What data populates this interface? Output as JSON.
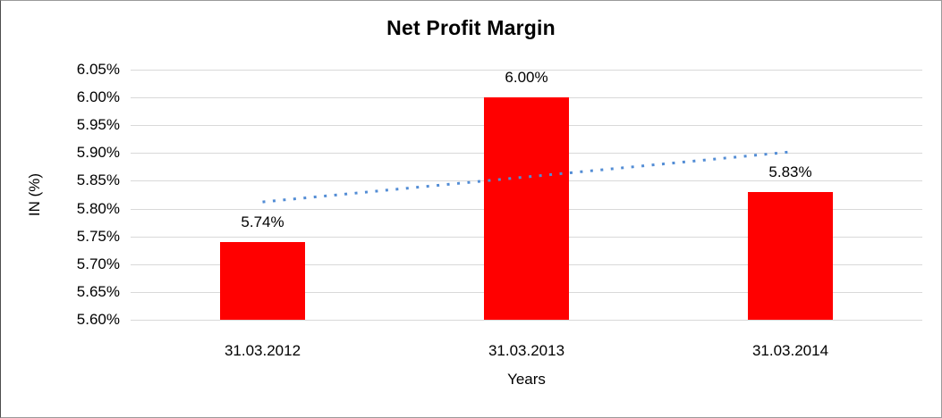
{
  "chart_data": {
    "type": "bar",
    "title": "Net Profit Margin",
    "xlabel": "Years",
    "ylabel": "IN (%)",
    "categories": [
      "31.03.2012",
      "31.03.2013",
      "31.03.2014"
    ],
    "values": [
      5.74,
      6.0,
      5.83
    ],
    "data_labels": [
      "5.74%",
      "6.00%",
      "5.83%"
    ],
    "ylim": [
      5.6,
      6.05
    ],
    "ytick_step": 0.05,
    "yticks": [
      {
        "label": "6.05%",
        "value": 6.05
      },
      {
        "label": "6.00%",
        "value": 6.0
      },
      {
        "label": "5.95%",
        "value": 5.95
      },
      {
        "label": "5.90%",
        "value": 5.9
      },
      {
        "label": "5.85%",
        "value": 5.85
      },
      {
        "label": "5.80%",
        "value": 5.8
      },
      {
        "label": "5.75%",
        "value": 5.75
      },
      {
        "label": "5.70%",
        "value": 5.7
      },
      {
        "label": "5.65%",
        "value": 5.65
      },
      {
        "label": "5.60%",
        "value": 5.6
      }
    ],
    "grid": true,
    "legend_position": "none",
    "colors": {
      "bar": "#ff0000",
      "trendline": "#538dd5",
      "gridline": "#d9d9d9",
      "text": "#000000",
      "background": "#ffffff"
    },
    "trendline": {
      "type": "linear",
      "style": "dotted",
      "start_value": 5.812,
      "end_value": 5.902
    }
  }
}
